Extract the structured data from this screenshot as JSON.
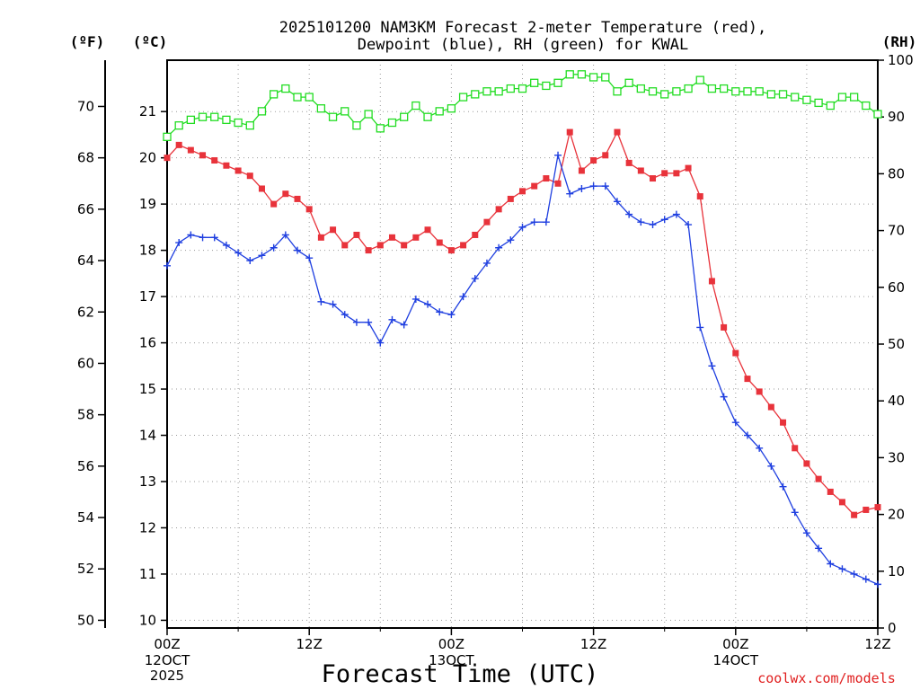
{
  "chart_data": {
    "type": "line",
    "title_line1": "2025101200 NAM3KM Forecast 2-meter Temperature (red),",
    "title_line2": "Dewpoint (blue), RH (green) for KWAL",
    "unit_left_f": "(ºF)",
    "unit_left_c": "(ºC)",
    "unit_right": "(RH)",
    "xlabel": "Forecast Time (UTC)",
    "credit": "coolwx.com/models",
    "hours_range": [
      0,
      60
    ],
    "f_ticks": [
      "50",
      "52",
      "54",
      "56",
      "58",
      "60",
      "62",
      "64",
      "66",
      "68",
      "70"
    ],
    "f_range": [
      49.7,
      71.8
    ],
    "c_ticks": [
      "10",
      "11",
      "12",
      "13",
      "14",
      "15",
      "16",
      "17",
      "18",
      "19",
      "20",
      "21"
    ],
    "rh_ticks": [
      "0",
      "10",
      "20",
      "30",
      "40",
      "50",
      "60",
      "70",
      "80",
      "90",
      "100"
    ],
    "rh_range": [
      0,
      100
    ],
    "x_ticks": [
      {
        "hour": 0,
        "label": "00Z",
        "sub1": "12OCT",
        "sub2": "2025"
      },
      {
        "hour": 12,
        "label": "12Z",
        "sub1": "",
        "sub2": ""
      },
      {
        "hour": 24,
        "label": "00Z",
        "sub1": "13OCT",
        "sub2": ""
      },
      {
        "hour": 36,
        "label": "12Z",
        "sub1": "",
        "sub2": ""
      },
      {
        "hour": 48,
        "label": "00Z",
        "sub1": "14OCT",
        "sub2": ""
      },
      {
        "hour": 60,
        "label": "12Z",
        "sub1": "",
        "sub2": ""
      }
    ],
    "grid": true,
    "series": [
      {
        "name": "2-meter Temperature",
        "units": "F",
        "color": "#e8333b",
        "marker": "filled-square",
        "values": [
          68.0,
          68.5,
          68.3,
          68.1,
          67.9,
          67.7,
          67.5,
          67.3,
          66.8,
          66.2,
          66.6,
          66.4,
          66.0,
          64.9,
          65.2,
          64.6,
          65.0,
          64.4,
          64.6,
          64.9,
          64.6,
          64.9,
          65.2,
          64.7,
          64.4,
          64.6,
          65.0,
          65.5,
          66.0,
          66.4,
          66.7,
          66.9,
          67.2,
          67.0,
          69.0,
          67.5,
          67.9,
          68.1,
          69.0,
          67.8,
          67.5,
          67.2,
          67.4,
          67.4,
          67.6,
          66.5,
          63.2,
          61.4,
          60.4,
          59.4,
          58.9,
          58.3,
          57.7,
          56.7,
          56.1,
          55.5,
          55.0,
          54.6,
          54.1,
          54.3,
          54.4
        ]
      },
      {
        "name": "Dewpoint",
        "units": "F",
        "color": "#1f3fe0",
        "marker": "plus",
        "values": [
          63.8,
          64.7,
          65.0,
          64.9,
          64.9,
          64.6,
          64.3,
          64.0,
          64.2,
          64.5,
          65.0,
          64.4,
          64.1,
          62.4,
          62.3,
          61.9,
          61.6,
          61.6,
          60.8,
          61.7,
          61.5,
          62.5,
          62.3,
          62.0,
          61.9,
          62.6,
          63.3,
          63.9,
          64.5,
          64.8,
          65.3,
          65.5,
          65.5,
          68.1,
          66.6,
          66.8,
          66.9,
          66.9,
          66.3,
          65.8,
          65.5,
          65.4,
          65.6,
          65.8,
          65.4,
          61.4,
          59.9,
          58.7,
          57.7,
          57.2,
          56.7,
          56.0,
          55.2,
          54.2,
          53.4,
          52.8,
          52.2,
          52.0,
          51.8,
          51.6,
          51.4
        ]
      },
      {
        "name": "RH",
        "units": "%",
        "color": "#22dd22",
        "marker": "open-square",
        "values": [
          86.5,
          88.5,
          89.5,
          90.0,
          90.0,
          89.5,
          89.0,
          88.5,
          91.0,
          94.0,
          95.0,
          93.5,
          93.5,
          91.5,
          90.0,
          91.0,
          88.5,
          90.5,
          88.0,
          89.0,
          90.0,
          92.0,
          90.0,
          91.0,
          91.5,
          93.5,
          94.0,
          94.5,
          94.5,
          95.0,
          95.0,
          96.0,
          95.5,
          96.0,
          97.5,
          97.5,
          97.0,
          97.0,
          94.5,
          96.0,
          95.0,
          94.5,
          94.0,
          94.5,
          95.0,
          96.5,
          95.0,
          95.0,
          94.5,
          94.5,
          94.5,
          94.0,
          94.0,
          93.5,
          93.0,
          92.5,
          92.0,
          93.5,
          93.5,
          92.0,
          90.5
        ]
      }
    ]
  }
}
